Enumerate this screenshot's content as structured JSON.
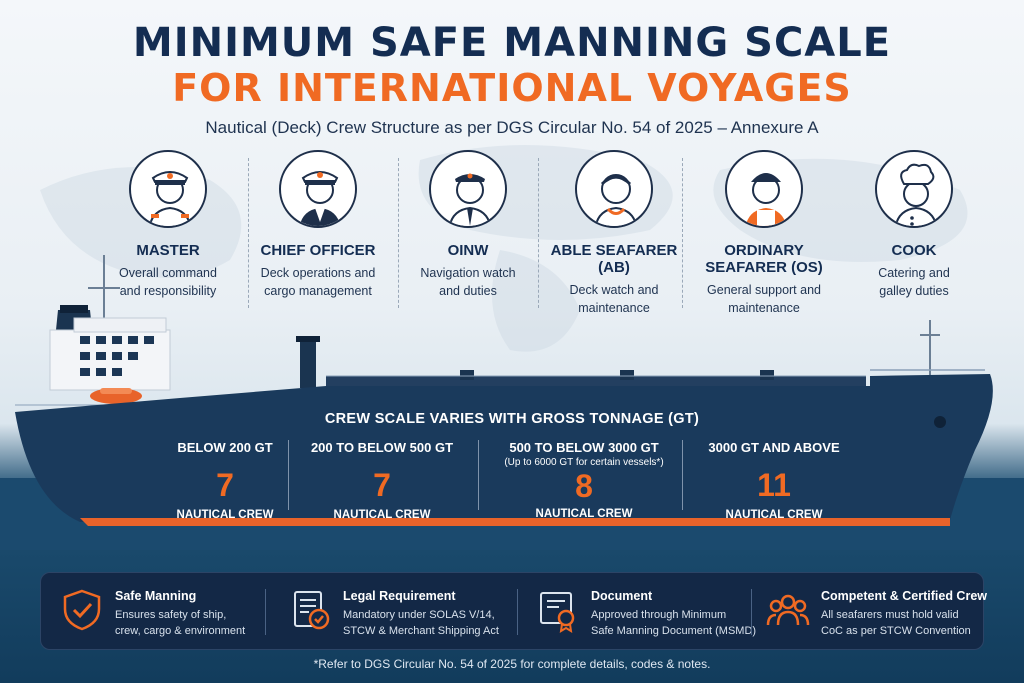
{
  "header": {
    "title_line1": "MINIMUM SAFE MANNING SCALE",
    "title_line2": "FOR INTERNATIONAL VOYAGES",
    "subtitle": "Nautical (Deck) Crew Structure as per DGS Circular No. 54 of 2025 – Annexure A"
  },
  "roles": [
    {
      "name": "MASTER",
      "desc1": "Overall command",
      "desc2": "and responsibility",
      "icon": "captain-icon"
    },
    {
      "name": "CHIEF OFFICER",
      "desc1": "Deck operations and",
      "desc2": "cargo management",
      "icon": "officer-icon"
    },
    {
      "name": "OINW",
      "desc1": "Navigation watch",
      "desc2": "and duties",
      "icon": "watch-officer-icon"
    },
    {
      "name": "ABLE SEAFARER (AB)",
      "desc1": "Deck watch and",
      "desc2": "maintenance",
      "icon": "able-seafarer-icon"
    },
    {
      "name": "ORDINARY SEAFARER (OS)",
      "desc1": "General support and",
      "desc2": "maintenance",
      "icon": "ordinary-seafarer-icon"
    },
    {
      "name": "COOK",
      "desc1": "Catering and",
      "desc2": "galley duties",
      "icon": "cook-icon"
    }
  ],
  "crew_scale": {
    "heading": "CREW SCALE VARIES WITH GROSS TONNAGE (GT)",
    "tiers": [
      {
        "label": "BELOW 200 GT",
        "note": "",
        "value": "7",
        "unit": "NAUTICAL CREW"
      },
      {
        "label": "200 TO BELOW 500 GT",
        "note": "",
        "value": "7",
        "unit": "NAUTICAL CREW"
      },
      {
        "label": "500 TO BELOW 3000 GT",
        "note": "(Up to 6000 GT for certain vessels*)",
        "value": "8",
        "unit": "NAUTICAL CREW"
      },
      {
        "label": "3000 GT AND ABOVE",
        "note": "",
        "value": "11",
        "unit": "NAUTICAL CREW"
      }
    ]
  },
  "info": [
    {
      "title": "Safe Manning",
      "desc1": "Ensures safety of ship,",
      "desc2": "crew, cargo & environment",
      "icon": "shield-check-icon"
    },
    {
      "title": "Legal Requirement",
      "desc1": "Mandatory under SOLAS V/14,",
      "desc2": "STCW & Merchant Shipping Act",
      "icon": "legal-document-icon"
    },
    {
      "title": "Document",
      "desc1": "Approved through Minimum",
      "desc2": "Safe Manning Document (MSMD)",
      "icon": "certificate-icon"
    },
    {
      "title": "Competent & Certified Crew",
      "desc1": "All seafarers must hold valid",
      "desc2": "CoC as per STCW Convention",
      "icon": "crew-group-icon"
    }
  ],
  "footnote": "*Refer to DGS Circular No. 54 of 2025 for complete details, codes & notes.",
  "colors": {
    "navy": "#142d52",
    "orange": "#f06a23",
    "hull": "#1a3a5c",
    "panel": "#132846"
  }
}
